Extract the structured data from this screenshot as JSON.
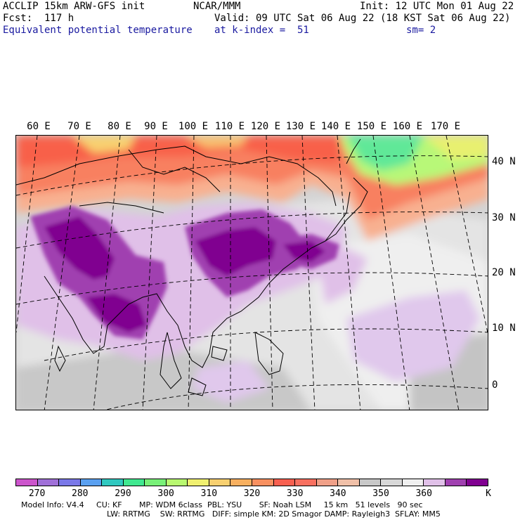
{
  "header": {
    "line1_left": "ACCLIP 15km ARW-GFS init",
    "line1_center": "NCAR/MMM",
    "line1_right": "Init: 12 UTC Mon 01 Aug 22",
    "line2_left": "Fcst:  117 h",
    "line2_right": "Valid: 09 UTC Sat 06 Aug 22 (18 KST Sat 06 Aug 22)",
    "line3_left": "Equivalent potential temperature",
    "line3_center": "at k-index =  51",
    "line3_right": "sm= 2"
  },
  "map": {
    "lon_labels": [
      "60 E",
      "70 E",
      "80 E",
      "90 E",
      "100 E",
      "110 E",
      "120 E",
      "130 E",
      "140 E",
      "150 E",
      "160 E",
      "170 E"
    ],
    "lat_labels": [
      "40 N",
      "30 N",
      "20 N",
      "10 N",
      "0"
    ]
  },
  "colorbar": {
    "colors": [
      "#cc55cc",
      "#a070d8",
      "#7a78e8",
      "#5aa0f0",
      "#30c8c0",
      "#40e890",
      "#78f078",
      "#b8f870",
      "#f0f070",
      "#f8d070",
      "#f8b060",
      "#f89060",
      "#f86050",
      "#f87060",
      "#f0a088",
      "#f0c0a8",
      "#c8c8c8",
      "#d8d8d8",
      "#f0f0f0",
      "#e0c0e8",
      "#a040b0",
      "#800090"
    ],
    "labels": [
      "270",
      "280",
      "290",
      "300",
      "310",
      "320",
      "330",
      "340",
      "350",
      "360",
      "K"
    ]
  },
  "footer": {
    "line1": "Model Info: V4.4     CU: KF       MP: WDM 6class  PBL: YSU       SF: Noah LSM     15 km   51 levels   90 sec",
    "line2": "LW: RRTMG    SW: RRTMG   DIFF: simple KM: 2D Smagor DAMP: Rayleigh3  SFLAY: MM5"
  }
}
